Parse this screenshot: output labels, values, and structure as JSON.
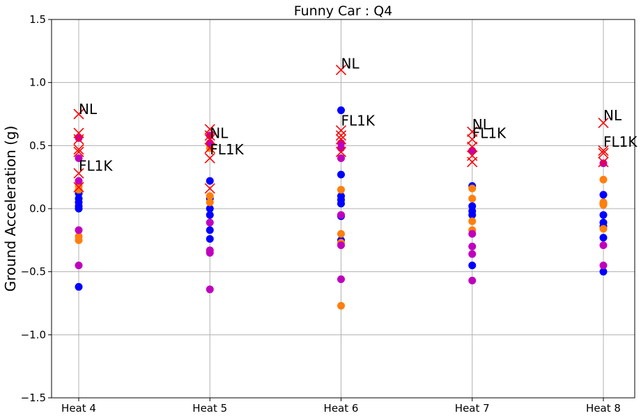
{
  "chart_data": {
    "type": "scatter",
    "title": "Funny Car : Q4",
    "xlabel": "",
    "ylabel": "Ground Acceleration (g)",
    "categories": [
      "Heat 4",
      "Heat 5",
      "Heat 6",
      "Heat 7",
      "Heat 8"
    ],
    "ylim": [
      -1.5,
      1.5
    ],
    "yticks": [
      -1.5,
      -1.0,
      -0.5,
      0.0,
      0.5,
      1.0,
      1.5
    ],
    "ytick_labels": [
      "−1.5",
      "−1.0",
      "−0.5",
      "0.0",
      "0.5",
      "1.0",
      "1.5"
    ],
    "grid": true,
    "colors": {
      "blue": "#0000ff",
      "orange": "#ff7f0e",
      "magenta": "#bf00bf",
      "red_x": "#ff0000"
    },
    "series": [
      {
        "color": "blue",
        "marker": "circle",
        "points": [
          {
            "x": "Heat 4",
            "y": 0.12
          },
          {
            "x": "Heat 4",
            "y": 0.08
          },
          {
            "x": "Heat 4",
            "y": 0.05
          },
          {
            "x": "Heat 4",
            "y": 0.02
          },
          {
            "x": "Heat 4",
            "y": 0.0
          },
          {
            "x": "Heat 4",
            "y": -0.62
          },
          {
            "x": "Heat 5",
            "y": 0.22
          },
          {
            "x": "Heat 5",
            "y": 0.08
          },
          {
            "x": "Heat 5",
            "y": 0.0
          },
          {
            "x": "Heat 5",
            "y": -0.05
          },
          {
            "x": "Heat 5",
            "y": -0.17
          },
          {
            "x": "Heat 5",
            "y": -0.24
          },
          {
            "x": "Heat 6",
            "y": 0.78
          },
          {
            "x": "Heat 6",
            "y": 0.27
          },
          {
            "x": "Heat 6",
            "y": 0.1
          },
          {
            "x": "Heat 6",
            "y": 0.07
          },
          {
            "x": "Heat 6",
            "y": 0.04
          },
          {
            "x": "Heat 6",
            "y": -0.06
          },
          {
            "x": "Heat 6",
            "y": -0.25
          },
          {
            "x": "Heat 7",
            "y": 0.18
          },
          {
            "x": "Heat 7",
            "y": 0.02
          },
          {
            "x": "Heat 7",
            "y": -0.02
          },
          {
            "x": "Heat 7",
            "y": -0.05
          },
          {
            "x": "Heat 7",
            "y": -0.45
          },
          {
            "x": "Heat 8",
            "y": 0.11
          },
          {
            "x": "Heat 8",
            "y": 0.04
          },
          {
            "x": "Heat 8",
            "y": -0.05
          },
          {
            "x": "Heat 8",
            "y": -0.11
          },
          {
            "x": "Heat 8",
            "y": -0.14
          },
          {
            "x": "Heat 8",
            "y": -0.23
          },
          {
            "x": "Heat 8",
            "y": -0.5
          }
        ]
      },
      {
        "color": "orange",
        "marker": "circle",
        "points": [
          {
            "x": "Heat 4",
            "y": 0.18
          },
          {
            "x": "Heat 4",
            "y": 0.15
          },
          {
            "x": "Heat 4",
            "y": -0.22
          },
          {
            "x": "Heat 4",
            "y": -0.25
          },
          {
            "x": "Heat 5",
            "y": 0.48
          },
          {
            "x": "Heat 5",
            "y": 0.1
          },
          {
            "x": "Heat 5",
            "y": 0.05
          },
          {
            "x": "Heat 6",
            "y": 0.15
          },
          {
            "x": "Heat 6",
            "y": -0.2
          },
          {
            "x": "Heat 6",
            "y": -0.27
          },
          {
            "x": "Heat 6",
            "y": -0.77
          },
          {
            "x": "Heat 7",
            "y": 0.16
          },
          {
            "x": "Heat 7",
            "y": 0.08
          },
          {
            "x": "Heat 7",
            "y": -0.1
          },
          {
            "x": "Heat 7",
            "y": -0.17
          },
          {
            "x": "Heat 8",
            "y": 0.23
          },
          {
            "x": "Heat 8",
            "y": 0.05
          },
          {
            "x": "Heat 8",
            "y": 0.03
          },
          {
            "x": "Heat 8",
            "y": -0.16
          }
        ]
      },
      {
        "color": "magenta",
        "marker": "circle",
        "points": [
          {
            "x": "Heat 4",
            "y": 0.56
          },
          {
            "x": "Heat 4",
            "y": 0.4
          },
          {
            "x": "Heat 4",
            "y": 0.22
          },
          {
            "x": "Heat 4",
            "y": -0.17
          },
          {
            "x": "Heat 4",
            "y": -0.45
          },
          {
            "x": "Heat 5",
            "y": 0.58
          },
          {
            "x": "Heat 5",
            "y": 0.52
          },
          {
            "x": "Heat 5",
            "y": -0.11
          },
          {
            "x": "Heat 5",
            "y": -0.33
          },
          {
            "x": "Heat 5",
            "y": -0.35
          },
          {
            "x": "Heat 5",
            "y": -0.64
          },
          {
            "x": "Heat 6",
            "y": 0.52
          },
          {
            "x": "Heat 6",
            "y": 0.48
          },
          {
            "x": "Heat 6",
            "y": 0.4
          },
          {
            "x": "Heat 6",
            "y": -0.05
          },
          {
            "x": "Heat 6",
            "y": -0.29
          },
          {
            "x": "Heat 6",
            "y": -0.56
          },
          {
            "x": "Heat 7",
            "y": 0.46
          },
          {
            "x": "Heat 7",
            "y": -0.2
          },
          {
            "x": "Heat 7",
            "y": -0.3
          },
          {
            "x": "Heat 7",
            "y": -0.36
          },
          {
            "x": "Heat 7",
            "y": -0.57
          },
          {
            "x": "Heat 8",
            "y": 0.36
          },
          {
            "x": "Heat 8",
            "y": -0.29
          },
          {
            "x": "Heat 8",
            "y": -0.45
          }
        ]
      },
      {
        "color": "red_x",
        "marker": "x",
        "points": [
          {
            "x": "Heat 4",
            "y": 0.75
          },
          {
            "x": "Heat 4",
            "y": 0.6
          },
          {
            "x": "Heat 4",
            "y": 0.55
          },
          {
            "x": "Heat 4",
            "y": 0.47
          },
          {
            "x": "Heat 4",
            "y": 0.45
          },
          {
            "x": "Heat 4",
            "y": 0.28
          },
          {
            "x": "Heat 4",
            "y": 0.17
          },
          {
            "x": "Heat 5",
            "y": 0.63
          },
          {
            "x": "Heat 5",
            "y": 0.58
          },
          {
            "x": "Heat 5",
            "y": 0.55
          },
          {
            "x": "Heat 5",
            "y": 0.48
          },
          {
            "x": "Heat 5",
            "y": 0.4
          },
          {
            "x": "Heat 5",
            "y": 0.16
          },
          {
            "x": "Heat 6",
            "y": 1.1
          },
          {
            "x": "Heat 6",
            "y": 0.62
          },
          {
            "x": "Heat 6",
            "y": 0.58
          },
          {
            "x": "Heat 6",
            "y": 0.55
          },
          {
            "x": "Heat 6",
            "y": 0.45
          },
          {
            "x": "Heat 7",
            "y": 0.61
          },
          {
            "x": "Heat 7",
            "y": 0.55
          },
          {
            "x": "Heat 7",
            "y": 0.49
          },
          {
            "x": "Heat 7",
            "y": 0.42
          },
          {
            "x": "Heat 7",
            "y": 0.37
          },
          {
            "x": "Heat 8",
            "y": 0.68
          },
          {
            "x": "Heat 8",
            "y": 0.46
          },
          {
            "x": "Heat 8",
            "y": 0.44
          },
          {
            "x": "Heat 8",
            "y": 0.37
          }
        ]
      }
    ],
    "annotations": [
      {
        "text": "NL",
        "x": "Heat 4",
        "y": 0.75
      },
      {
        "text": "FL1K",
        "x": "Heat 4",
        "y": 0.3
      },
      {
        "text": "NL",
        "x": "Heat 5",
        "y": 0.56
      },
      {
        "text": "FL1K",
        "x": "Heat 5",
        "y": 0.43
      },
      {
        "text": "NL",
        "x": "Heat 6",
        "y": 1.11
      },
      {
        "text": "FL1K",
        "x": "Heat 6",
        "y": 0.66
      },
      {
        "text": "NL",
        "x": "Heat 7",
        "y": 0.63
      },
      {
        "text": "FL1K",
        "x": "Heat 7",
        "y": 0.56
      },
      {
        "text": "NL",
        "x": "Heat 8",
        "y": 0.7
      },
      {
        "text": "FL1K",
        "x": "Heat 8",
        "y": 0.49
      }
    ]
  }
}
